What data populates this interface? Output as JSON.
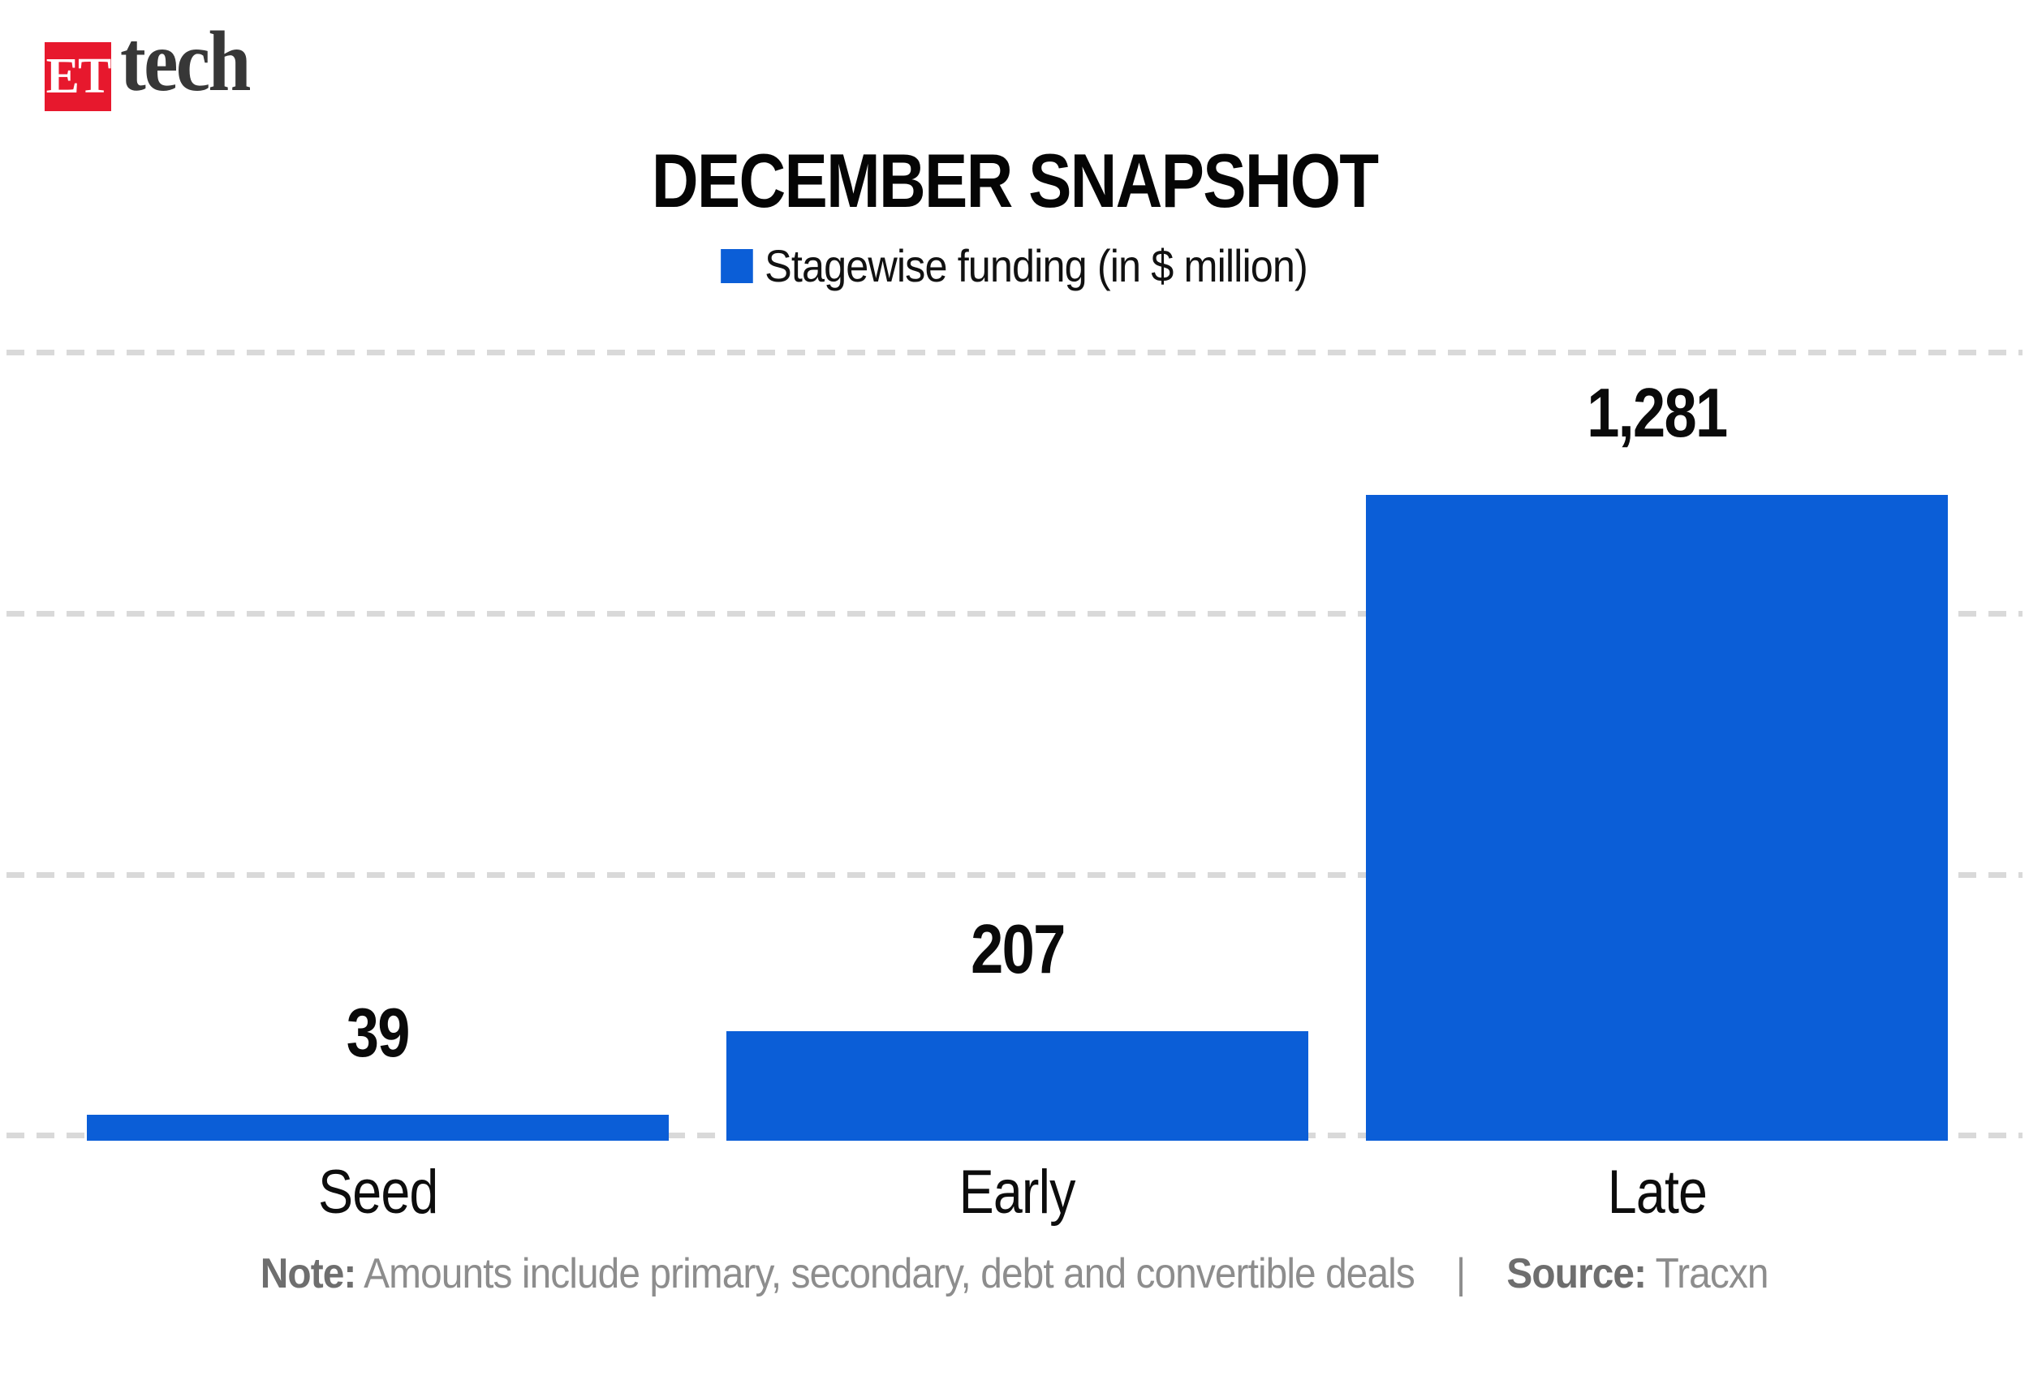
{
  "logo": {
    "badge": "ET",
    "name": "tech"
  },
  "header": {
    "title": "DECEMBER SNAPSHOT"
  },
  "legend": {
    "label": "Stagewise funding (in $ million)"
  },
  "chart_data": {
    "type": "bar",
    "title": "DECEMBER SNAPSHOT",
    "series_label": "Stagewise funding (in $ million)",
    "categories": [
      "Seed",
      "Early",
      "Late"
    ],
    "values": [
      39,
      207,
      1281
    ],
    "display_values": [
      "39",
      "207",
      "1,281"
    ],
    "unit": "$ million",
    "bar_color": "#0b5ed7",
    "grid": "dashed-horizontal",
    "gridline_count": 4,
    "legend_position": "top-center",
    "value_labels": "above-bars",
    "xlabel": "",
    "ylabel": "",
    "ylim": [
      0,
      1400
    ]
  },
  "footer": {
    "note_label": "Note:",
    "note_text": "Amounts include primary, secondary, debt and convertible deals",
    "separator": "|",
    "source_label": "Source:",
    "source_value": "Tracxn"
  },
  "colors": {
    "bar_blue": "#0b5ed7",
    "logo_red": "#e7182d",
    "grid_gray": "#d9d9d9",
    "note_gray": "#8d8d8d",
    "text_dark": "#0a0a0a"
  }
}
